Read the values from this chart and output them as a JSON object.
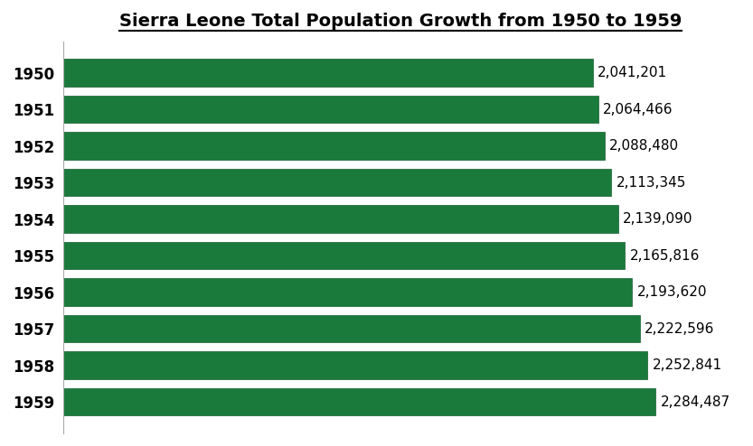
{
  "title": "Sierra Leone Total Population Growth from 1950 to 1959",
  "years": [
    "1950",
    "1951",
    "1952",
    "1953",
    "1954",
    "1955",
    "1956",
    "1957",
    "1958",
    "1959"
  ],
  "values": [
    2041201,
    2064466,
    2088480,
    2113345,
    2139090,
    2165816,
    2193620,
    2222596,
    2252841,
    2284487
  ],
  "labels": [
    "2,041,201",
    "2,064,466",
    "2,088,480",
    "2,113,345",
    "2,139,090",
    "2,165,816",
    "2,193,620",
    "2,222,596",
    "2,252,841",
    "2,284,487"
  ],
  "bar_color": "#1a7a3c",
  "bar_edge_color": "#145e2d",
  "background_color": "#ffffff",
  "text_color": "#000000",
  "title_fontsize": 14,
  "label_fontsize": 11,
  "tick_fontsize": 12,
  "xlim": [
    0,
    2600000
  ],
  "figure_width": 8.33,
  "figure_height": 4.94,
  "dpi": 100
}
